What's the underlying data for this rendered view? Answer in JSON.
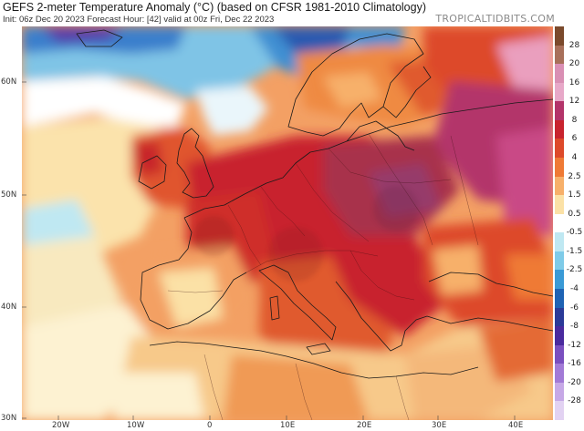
{
  "header": {
    "title": "GEFS 2-meter Temperature Anomaly (°C) (based on CFSR 1981-2010 Climatology)",
    "subtitle": "Init: 06z Dec 20 2023   Forecast Hour: [42]   valid at 00z Fri, Dec 22 2023",
    "brand": "TROPICALTIDBITS.COM"
  },
  "axes": {
    "lat_labels": [
      "60N",
      "50N",
      "40N",
      "30N"
    ],
    "lon_labels": [
      "20W",
      "10W",
      "0",
      "10E",
      "20E",
      "30E",
      "40E"
    ]
  },
  "colorbar": {
    "labels": [
      "28",
      "20",
      "16",
      "12",
      "8",
      "6",
      "4",
      "2.5",
      "1.5",
      "0.5",
      "-0.5",
      "-1.5",
      "-2.5",
      "-4",
      "-6",
      "-8",
      "-12",
      "-16",
      "-20",
      "-28"
    ],
    "colors": [
      "#7b4a2c",
      "#a8705a",
      "#d98fb4",
      "#e7a8c8",
      "#b3346a",
      "#c8242e",
      "#dd4a2a",
      "#ef7a35",
      "#f7b06a",
      "#fbe1a6",
      "#ffffff",
      "#bfe8f2",
      "#7fcbe8",
      "#3a9ad6",
      "#1f63b4",
      "#2b3a98",
      "#4a2a9e",
      "#7a4fbf",
      "#a27ad6",
      "#c6a8e6",
      "#e2d2f2"
    ]
  }
}
